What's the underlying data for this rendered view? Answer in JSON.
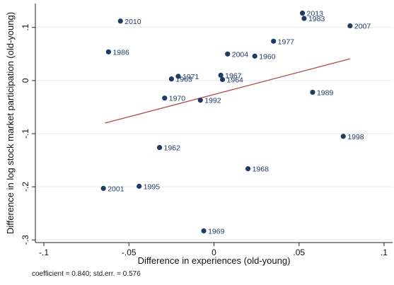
{
  "chart_data": {
    "type": "scatter",
    "xlabel": "Difference in experiences (old-young)",
    "ylabel": "Difference in log stock market participation (old-young)",
    "xlim": [
      -0.105,
      0.105
    ],
    "ylim": [
      -0.305,
      0.145
    ],
    "xticks": [
      -0.1,
      -0.05,
      0,
      0.05,
      0.1
    ],
    "xtick_labels": [
      "-.1",
      "-.05",
      "0",
      ".05",
      ".1"
    ],
    "yticks": [
      -0.3,
      -0.2,
      -0.1,
      0,
      0.1
    ],
    "ytick_labels": [
      "-.3",
      "-.2",
      "-.1",
      "0",
      ".1"
    ],
    "grid": "horizontal",
    "points": [
      {
        "label": "2010",
        "x": -0.055,
        "y": 0.112
      },
      {
        "label": "2013",
        "x": 0.052,
        "y": 0.127
      },
      {
        "label": "1983",
        "x": 0.053,
        "y": 0.117
      },
      {
        "label": "2007",
        "x": 0.08,
        "y": 0.103
      },
      {
        "label": "1977",
        "x": 0.035,
        "y": 0.074
      },
      {
        "label": "1986",
        "x": -0.062,
        "y": 0.054
      },
      {
        "label": "2004",
        "x": 0.008,
        "y": 0.05
      },
      {
        "label": "1960",
        "x": 0.024,
        "y": 0.046
      },
      {
        "label": "1971",
        "x": -0.021,
        "y": 0.008
      },
      {
        "label": "1963",
        "x": -0.025,
        "y": 0.003
      },
      {
        "label": "1967",
        "x": 0.004,
        "y": 0.01
      },
      {
        "label": "1964",
        "x": 0.005,
        "y": 0.002
      },
      {
        "label": "1989",
        "x": 0.058,
        "y": -0.022
      },
      {
        "label": "1970",
        "x": -0.029,
        "y": -0.033
      },
      {
        "label": "1992",
        "x": -0.008,
        "y": -0.037
      },
      {
        "label": "1998",
        "x": 0.076,
        "y": -0.105
      },
      {
        "label": "1962",
        "x": -0.032,
        "y": -0.126
      },
      {
        "label": "1968",
        "x": 0.02,
        "y": -0.166
      },
      {
        "label": "1995",
        "x": -0.044,
        "y": -0.199
      },
      {
        "label": "2001",
        "x": -0.065,
        "y": -0.203
      },
      {
        "label": "1969",
        "x": -0.006,
        "y": -0.283
      }
    ],
    "fit_line": {
      "x": [
        -0.064,
        0.08
      ],
      "y": [
        -0.08,
        0.041
      ],
      "color": "#b04a4a"
    },
    "marker_color": "#1f3c66"
  },
  "footnote": "coefficient = 0.840; std.err. = 0.576"
}
